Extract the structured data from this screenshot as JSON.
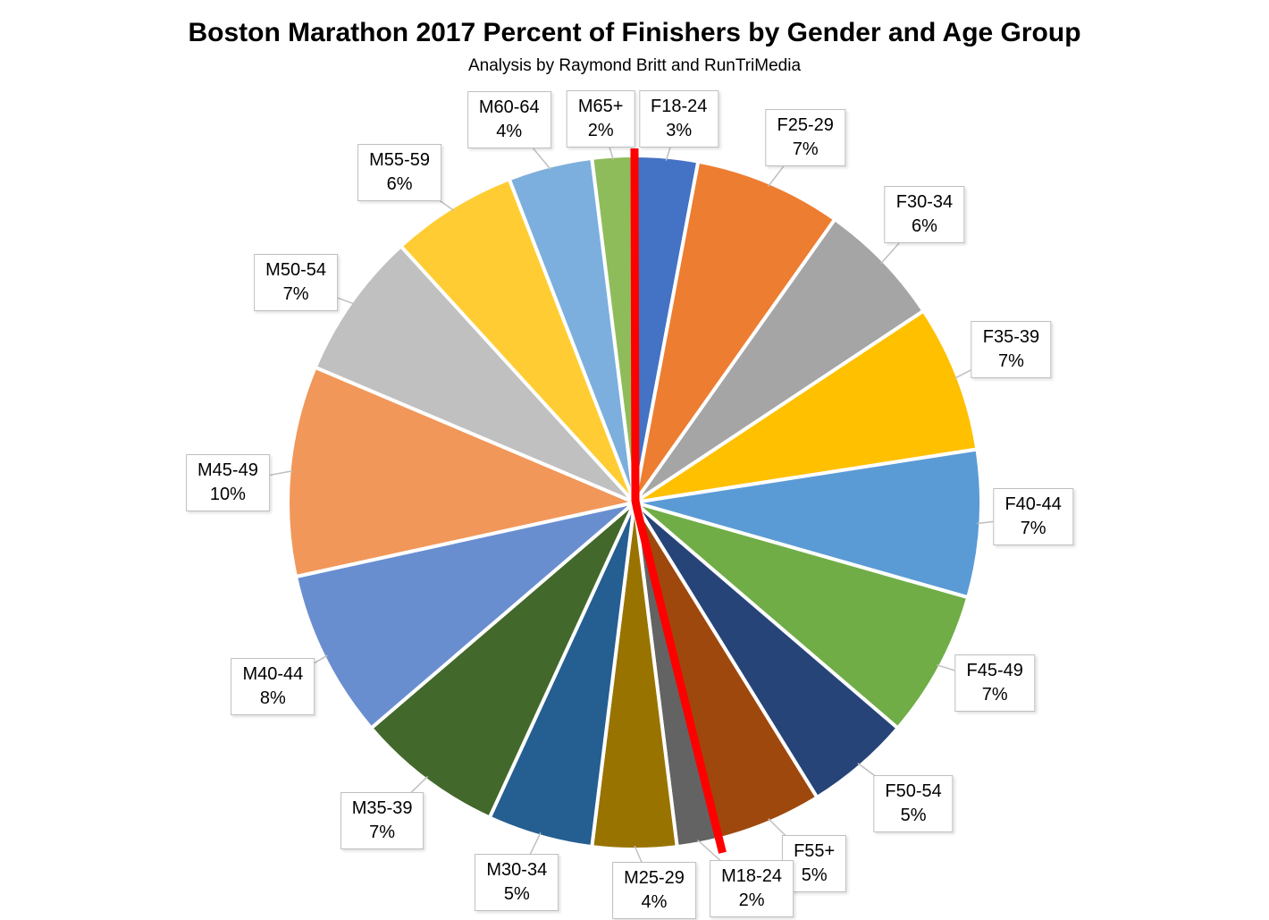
{
  "chart_data": {
    "type": "pie",
    "title": "Boston Marathon 2017 Percent of Finishers by Gender and Age Group",
    "subtitle": "Analysis by Raymond Britt and RunTriMedia",
    "unit": "%",
    "start_angle_deg": 0,
    "direction": "clockwise",
    "legend": "none",
    "labels_style": "callout boxes with leader lines showing group and percent",
    "slices": [
      {
        "label": "F18-24",
        "value": 3,
        "color": "#4472C4"
      },
      {
        "label": "F25-29",
        "value": 7,
        "color": "#ED7D31"
      },
      {
        "label": "F30-34",
        "value": 6,
        "color": "#A5A5A5"
      },
      {
        "label": "F35-39",
        "value": 7,
        "color": "#FFC000"
      },
      {
        "label": "F40-44",
        "value": 7,
        "color": "#5B9BD5"
      },
      {
        "label": "F45-49",
        "value": 7,
        "color": "#70AD47"
      },
      {
        "label": "F50-54",
        "value": 5,
        "color": "#264478"
      },
      {
        "label": "F55+",
        "value": 5,
        "color": "#9E480E"
      },
      {
        "label": "M18-24",
        "value": 2,
        "color": "#636363"
      },
      {
        "label": "M25-29",
        "value": 4,
        "color": "#997300"
      },
      {
        "label": "M30-34",
        "value": 5,
        "color": "#255E91"
      },
      {
        "label": "M35-39",
        "value": 7,
        "color": "#43682B"
      },
      {
        "label": "M40-44",
        "value": 8,
        "color": "#698ED0"
      },
      {
        "label": "M45-49",
        "value": 10,
        "color": "#F1975A"
      },
      {
        "label": "M50-54",
        "value": 7,
        "color": "#C0C0C0"
      },
      {
        "label": "M55-59",
        "value": 6,
        "color": "#FFCD33"
      },
      {
        "label": "M60-64",
        "value": 4,
        "color": "#7CAFDD"
      },
      {
        "label": "M65+",
        "value": 2,
        "color": "#8FBC5A"
      }
    ],
    "divider": {
      "description": "thick red line separating female (right half, starting at top) from male (left half) slices",
      "color": "#FF0000",
      "boundaries": [
        [
          "M65+",
          "F18-24"
        ],
        [
          "F55+",
          "M18-24"
        ]
      ]
    }
  }
}
